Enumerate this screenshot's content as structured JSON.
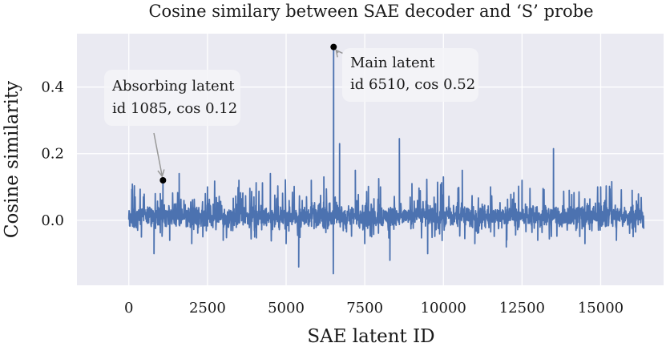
{
  "chart_data": {
    "type": "line",
    "title": "Cosine similary between SAE decoder and ‘S’ probe",
    "xlabel": "SAE latent ID",
    "ylabel": "Cosine similarity",
    "xlim": [
      -1650,
      17000
    ],
    "ylim": [
      -0.195,
      0.56
    ],
    "xticks": [
      0,
      2500,
      5000,
      7500,
      10000,
      12500,
      15000
    ],
    "yticks": [
      0.0,
      0.2,
      0.4
    ],
    "ytick_labels": [
      "0.0",
      "0.2",
      "0.4"
    ],
    "grid": true,
    "colors": {
      "background": "#eaeaf2",
      "grid": "#ffffff",
      "line": "#4c72b0",
      "marker": "#000000",
      "arrow": "#999999",
      "annotation_box": "#f4f4f8"
    },
    "series": [
      {
        "n_points": 16384,
        "values_sampled": [
          [
            0,
            0.01
          ],
          [
            200,
            0.07
          ],
          [
            400,
            -0.05
          ],
          [
            600,
            0.04
          ],
          [
            800,
            -0.1
          ],
          [
            1000,
            0.08
          ],
          [
            1085,
            0.12
          ],
          [
            1300,
            -0.06
          ],
          [
            1600,
            0.14
          ],
          [
            2000,
            -0.07
          ],
          [
            2500,
            0.1
          ],
          [
            3000,
            -0.06
          ],
          [
            3500,
            0.12
          ],
          [
            4000,
            -0.05
          ],
          [
            4500,
            0.14
          ],
          [
            5000,
            -0.07
          ],
          [
            5400,
            -0.14
          ],
          [
            5800,
            0.12
          ],
          [
            6200,
            0.13
          ],
          [
            6510,
            0.52
          ],
          [
            6500,
            -0.16
          ],
          [
            6700,
            0.23
          ],
          [
            7200,
            0.15
          ],
          [
            7500,
            -0.07
          ],
          [
            8000,
            0.1
          ],
          [
            8300,
            -0.12
          ],
          [
            8600,
            0.245
          ],
          [
            9000,
            0.11
          ],
          [
            9500,
            -0.1
          ],
          [
            10000,
            0.13
          ],
          [
            10600,
            0.15
          ],
          [
            11000,
            -0.07
          ],
          [
            11500,
            0.1
          ],
          [
            12000,
            -0.08
          ],
          [
            12500,
            0.12
          ],
          [
            13000,
            -0.06
          ],
          [
            13500,
            0.215
          ],
          [
            14000,
            0.09
          ],
          [
            14500,
            -0.07
          ],
          [
            15000,
            0.1
          ],
          [
            15500,
            -0.06
          ],
          [
            16000,
            0.09
          ],
          [
            16384,
            0.02
          ]
        ]
      }
    ],
    "annotations": [
      {
        "name": "absorbing",
        "point": [
          1085,
          0.12
        ],
        "line1": "Absorbing latent",
        "line2": "id 1085, cos 0.12"
      },
      {
        "name": "main",
        "point": [
          6510,
          0.52
        ],
        "line1": "Main latent",
        "line2": "id 6510, cos 0.52"
      }
    ]
  }
}
